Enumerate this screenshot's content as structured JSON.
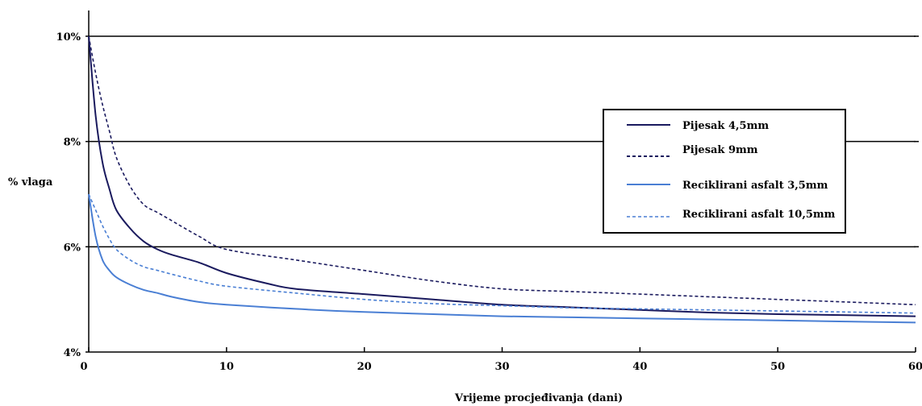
{
  "chart_data": {
    "type": "line",
    "title": "",
    "xlabel": "Vrijeme procjeđivanja (dani)",
    "ylabel": "% vlaga",
    "xlim": [
      0,
      60
    ],
    "ylim": [
      4,
      10
    ],
    "x_ticks": [
      0,
      10,
      20,
      30,
      40,
      50,
      60
    ],
    "x_tick_labels": [
      "0",
      "10",
      "20",
      "30",
      "40",
      "50",
      "60"
    ],
    "y_ticks": [
      4,
      6,
      8,
      10
    ],
    "y_tick_labels": [
      "4%",
      "6%",
      "8%",
      "10%"
    ],
    "grid": "horizontal",
    "legend_position": "right",
    "series": [
      {
        "name": "Pijesak 4,5mm",
        "color": "#1a1a5e",
        "dash": "solid",
        "x": [
          0,
          0.5,
          1,
          1.5,
          2,
          3,
          4,
          5,
          6,
          8,
          10,
          13,
          15,
          20,
          25,
          30,
          35,
          40,
          45,
          50,
          55,
          60
        ],
        "y": [
          10.0,
          8.5,
          7.6,
          7.1,
          6.7,
          6.35,
          6.1,
          5.95,
          5.85,
          5.7,
          5.5,
          5.3,
          5.2,
          5.1,
          5.0,
          4.9,
          4.85,
          4.8,
          4.75,
          4.72,
          4.7,
          4.68
        ]
      },
      {
        "name": "Pijesak 9mm",
        "color": "#1a1a5e",
        "dash": "dashed",
        "x": [
          0,
          0.5,
          1,
          1.5,
          2,
          3,
          4,
          5,
          6,
          8,
          10,
          15,
          20,
          25,
          30,
          35,
          40,
          45,
          50,
          55,
          60
        ],
        "y": [
          10.0,
          9.3,
          8.7,
          8.2,
          7.7,
          7.15,
          6.8,
          6.65,
          6.5,
          6.2,
          5.95,
          5.75,
          5.55,
          5.35,
          5.2,
          5.15,
          5.1,
          5.05,
          5.0,
          4.95,
          4.9
        ]
      },
      {
        "name": "Reciklirani asfalt 3,5mm",
        "color": "#4a7fd4",
        "dash": "solid",
        "x": [
          0,
          0.5,
          1,
          1.5,
          2,
          3,
          4,
          5,
          6,
          8,
          10,
          15,
          20,
          25,
          30,
          35,
          40,
          45,
          50,
          55,
          60
        ],
        "y": [
          7.0,
          6.2,
          5.75,
          5.55,
          5.42,
          5.28,
          5.18,
          5.12,
          5.05,
          4.95,
          4.9,
          4.82,
          4.76,
          4.72,
          4.68,
          4.66,
          4.64,
          4.62,
          4.6,
          4.58,
          4.56
        ]
      },
      {
        "name": "Reciklirani asfalt 10,5mm",
        "color": "#4a7fd4",
        "dash": "dashed",
        "x": [
          0,
          0.5,
          1,
          1.5,
          2,
          3,
          4,
          5,
          6,
          8,
          10,
          15,
          20,
          25,
          30,
          35,
          40,
          45,
          50,
          55,
          60
        ],
        "y": [
          7.0,
          6.7,
          6.4,
          6.15,
          5.95,
          5.75,
          5.62,
          5.55,
          5.48,
          5.35,
          5.25,
          5.12,
          5.0,
          4.92,
          4.88,
          4.84,
          4.82,
          4.8,
          4.78,
          4.76,
          4.74
        ]
      }
    ]
  }
}
